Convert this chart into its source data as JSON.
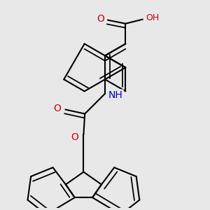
{
  "background_color": "#e8e8e8",
  "bond_color": "#000000",
  "bond_width": 1.5,
  "dbo": 0.055,
  "atom_colors": {
    "O": "#cc0000",
    "N": "#0000cc",
    "H": "#606060"
  },
  "font_size": 9,
  "figsize": [
    3.0,
    3.0
  ],
  "dpi": 100
}
